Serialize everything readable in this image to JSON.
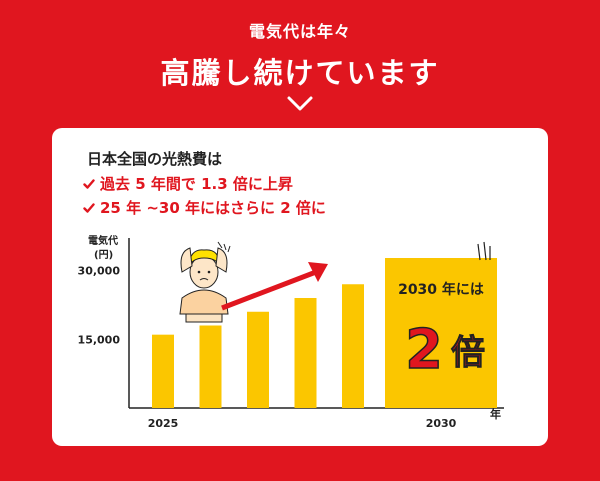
{
  "header": {
    "subtitle": "電気代は年々",
    "title": "高騰し続けています"
  },
  "card": {
    "title": "日本全国の光熱費は",
    "points": [
      "過去 5 年間で 1.3 倍に上昇",
      "25 年 ~30 年にはさらに 2 倍に"
    ]
  },
  "colors": {
    "background": "#e0161f",
    "bar": "#fbc600",
    "accent": "#e0161f",
    "arrow": "#e0161f"
  },
  "chart_data": {
    "type": "bar",
    "ylabel_line1": "電気代",
    "ylabel_line2": "(円)",
    "xlabel": "年",
    "yticks": [
      15000,
      30000
    ],
    "ytick_labels": [
      "15,000",
      "30,000"
    ],
    "x_labels": [
      "2025",
      "2030"
    ],
    "values": [
      16000,
      18000,
      21000,
      24000,
      27000,
      30000
    ],
    "ylim": [
      0,
      36000
    ],
    "callout": {
      "top_text": "2030 年には",
      "big_number": "2",
      "big_unit": "倍"
    }
  }
}
